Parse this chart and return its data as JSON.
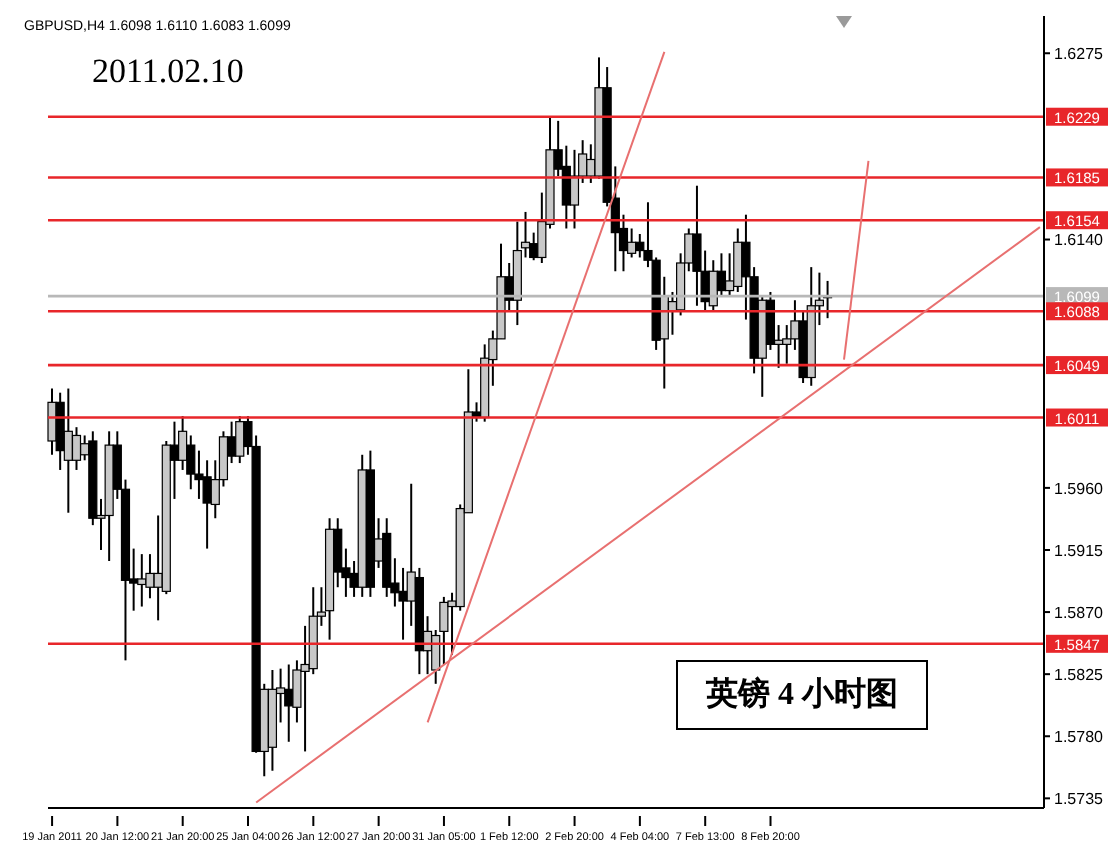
{
  "chart_data": {
    "type": "candlestick",
    "title": "2011.02.10",
    "subtitle": "GBPUSD,H4 1.6098 1.6110 1.6083 1.6099",
    "annotations": [
      "英镑 4 小时图"
    ],
    "categories": [
      "19 Jan 2011",
      null,
      null,
      null,
      null,
      null,
      null,
      null,
      "20 Jan 12:00",
      null,
      null,
      null,
      null,
      null,
      null,
      null,
      "21 Jan 20:00",
      null,
      null,
      null,
      null,
      null,
      null,
      null,
      "25 Jan 04:00",
      null,
      null,
      null,
      null,
      null,
      null,
      null,
      "26 Jan 12:00",
      null,
      null,
      null,
      null,
      null,
      null,
      null,
      "27 Jan 20:00",
      null,
      null,
      null,
      null,
      null,
      null,
      null,
      "31 Jan 05:00",
      null,
      null,
      null,
      null,
      null,
      null,
      null,
      "1 Feb 12:00",
      null,
      null,
      null,
      null,
      null,
      null,
      null,
      "2 Feb 20:00",
      null,
      null,
      null,
      null,
      null,
      null,
      null,
      "4 Feb 04:00",
      null,
      null,
      null,
      null,
      null,
      null,
      null,
      "7 Feb 13:00",
      null,
      null,
      null,
      null,
      null,
      null,
      null,
      "8 Feb 20:00",
      null,
      null,
      null,
      null,
      null,
      null,
      null,
      null,
      null,
      null,
      null,
      null,
      null,
      null,
      null,
      null,
      null,
      null,
      null,
      null,
      null,
      null,
      null,
      null,
      null,
      null,
      null,
      null,
      null,
      null,
      null,
      null,
      null
    ],
    "ohlc": [
      [
        1.5994,
        1.6032,
        1.5984,
        1.6022
      ],
      [
        1.6022,
        1.6029,
        1.5973,
        1.5987
      ],
      [
        1.598,
        1.6032,
        1.5942,
        1.6001
      ],
      [
        1.598,
        1.6004,
        1.5973,
        1.5998
      ],
      [
        1.5984,
        1.5998,
        1.598,
        1.5992
      ],
      [
        1.5994,
        1.6001,
        1.5933,
        1.5938
      ],
      [
        1.5938,
        1.5952,
        1.5915,
        1.594
      ],
      [
        1.594,
        1.6001,
        1.5907,
        1.5991
      ],
      [
        1.5991,
        1.6001,
        1.5952,
        1.5959
      ],
      [
        1.5959,
        1.5966,
        1.5835,
        1.5893
      ],
      [
        1.5894,
        1.5916,
        1.5871,
        1.5891
      ],
      [
        1.589,
        1.5912,
        1.5874,
        1.5894
      ],
      [
        1.5888,
        1.5912,
        1.588,
        1.5898
      ],
      [
        1.5888,
        1.594,
        1.5864,
        1.5898
      ],
      [
        1.5885,
        1.5994,
        1.5883,
        1.5991
      ],
      [
        1.5991,
        1.6008,
        1.5952,
        1.598
      ],
      [
        1.598,
        1.6012,
        1.5973,
        1.6001
      ],
      [
        1.5991,
        1.5998,
        1.5959,
        1.597
      ],
      [
        1.597,
        1.5987,
        1.5952,
        1.5966
      ],
      [
        1.5968,
        1.598,
        1.5916,
        1.5949
      ],
      [
        1.5948,
        1.598,
        1.5938,
        1.5966
      ],
      [
        1.5966,
        1.6001,
        1.5961,
        1.5997
      ],
      [
        1.5997,
        1.6008,
        1.5978,
        1.5983
      ],
      [
        1.5983,
        1.6012,
        1.5978,
        1.6008
      ],
      [
        1.6008,
        1.6012,
        1.5984,
        1.599
      ],
      [
        1.599,
        1.5998,
        1.5768,
        1.5769
      ],
      [
        1.5769,
        1.5818,
        1.5751,
        1.5814
      ],
      [
        1.5772,
        1.5828,
        1.5755,
        1.5814
      ],
      [
        1.5811,
        1.5829,
        1.579,
        1.5815
      ],
      [
        1.5814,
        1.5832,
        1.5776,
        1.5802
      ],
      [
        1.5801,
        1.5835,
        1.579,
        1.5828
      ],
      [
        1.5827,
        1.586,
        1.5769,
        1.5832
      ],
      [
        1.5829,
        1.5888,
        1.5825,
        1.5867
      ],
      [
        1.5867,
        1.5888,
        1.586,
        1.587
      ],
      [
        1.5871,
        1.5938,
        1.585,
        1.593
      ],
      [
        1.593,
        1.5938,
        1.5888,
        1.5899
      ],
      [
        1.5902,
        1.5916,
        1.5881,
        1.5895
      ],
      [
        1.5898,
        1.5907,
        1.5881,
        1.5888
      ],
      [
        1.5888,
        1.5984,
        1.5881,
        1.5973
      ],
      [
        1.5973,
        1.5987,
        1.5881,
        1.5888
      ],
      [
        1.5907,
        1.5938,
        1.5902,
        1.5923
      ],
      [
        1.5927,
        1.5938,
        1.5881,
        1.5888
      ],
      [
        1.5891,
        1.5909,
        1.5874,
        1.5884
      ],
      [
        1.5885,
        1.5902,
        1.585,
        1.5878
      ],
      [
        1.5878,
        1.5963,
        1.586,
        1.5899
      ],
      [
        1.5895,
        1.5902,
        1.5825,
        1.5842
      ],
      [
        1.5842,
        1.5867,
        1.5825,
        1.5856
      ],
      [
        1.5828,
        1.5857,
        1.5818,
        1.5853
      ],
      [
        1.5856,
        1.5881,
        1.5832,
        1.5877
      ],
      [
        1.5874,
        1.5884,
        1.5839,
        1.5878
      ],
      [
        1.5874,
        1.5948,
        1.5871,
        1.5945
      ],
      [
        1.5942,
        1.6046,
        1.5942,
        1.6015
      ],
      [
        1.6015,
        1.6022,
        1.6008,
        1.6011
      ],
      [
        1.6011,
        1.6064,
        1.6008,
        1.6054
      ],
      [
        1.6053,
        1.6074,
        1.6034,
        1.6068
      ],
      [
        1.6068,
        1.6137,
        1.6068,
        1.6113
      ],
      [
        1.6113,
        1.6123,
        1.6088,
        1.6096
      ],
      [
        1.6096,
        1.6153,
        1.6078,
        1.6132
      ],
      [
        1.6134,
        1.616,
        1.6127,
        1.6138
      ],
      [
        1.6137,
        1.6145,
        1.6125,
        1.6127
      ],
      [
        1.6127,
        1.6174,
        1.6123,
        1.6153
      ],
      [
        1.6151,
        1.6229,
        1.6148,
        1.6205
      ],
      [
        1.6205,
        1.6226,
        1.6186,
        1.6191
      ],
      [
        1.6193,
        1.6208,
        1.6148,
        1.6165
      ],
      [
        1.6165,
        1.6205,
        1.6148,
        1.6186
      ],
      [
        1.6186,
        1.6212,
        1.6181,
        1.6202
      ],
      [
        1.6186,
        1.6209,
        1.6181,
        1.6198
      ],
      [
        1.6186,
        1.6272,
        1.6184,
        1.625
      ],
      [
        1.625,
        1.6265,
        1.6164,
        1.6167
      ],
      [
        1.617,
        1.6193,
        1.6117,
        1.6145
      ],
      [
        1.6148,
        1.6158,
        1.6117,
        1.6132
      ],
      [
        1.613,
        1.6148,
        1.6127,
        1.6138
      ],
      [
        1.6138,
        1.6144,
        1.6127,
        1.6132
      ],
      [
        1.6132,
        1.6167,
        1.612,
        1.6125
      ],
      [
        1.6125,
        1.6127,
        1.606,
        1.6067
      ],
      [
        1.6068,
        1.6113,
        1.6032,
        1.6099
      ],
      [
        1.6088,
        1.6102,
        1.6071,
        1.6095
      ],
      [
        1.6089,
        1.613,
        1.6085,
        1.6123
      ],
      [
        1.6123,
        1.6148,
        1.6117,
        1.6144
      ],
      [
        1.6144,
        1.6179,
        1.6092,
        1.6117
      ],
      [
        1.6117,
        1.6132,
        1.6088,
        1.6095
      ],
      [
        1.6092,
        1.6125,
        1.6088,
        1.6117
      ],
      [
        1.6117,
        1.613,
        1.6099,
        1.6103
      ],
      [
        1.6103,
        1.613,
        1.6099,
        1.611
      ],
      [
        1.6106,
        1.6148,
        1.6102,
        1.6138
      ],
      [
        1.6138,
        1.6158,
        1.6082,
        1.6113
      ],
      [
        1.6113,
        1.612,
        1.6043,
        1.6054
      ],
      [
        1.6054,
        1.6099,
        1.6026,
        1.6096
      ],
      [
        1.6096,
        1.6102,
        1.606,
        1.6064
      ],
      [
        1.6064,
        1.6078,
        1.6047,
        1.6067
      ],
      [
        1.6064,
        1.6078,
        1.605,
        1.6068
      ],
      [
        1.6068,
        1.6096,
        1.606,
        1.6081
      ],
      [
        1.6081,
        1.6088,
        1.6036,
        1.604
      ],
      [
        1.604,
        1.612,
        1.6034,
        1.6092
      ],
      [
        1.6092,
        1.6116,
        1.6078,
        1.6096
      ],
      [
        1.6098,
        1.611,
        1.6083,
        1.6099
      ],
      null,
      null,
      null,
      null,
      null,
      null,
      null,
      null,
      null,
      null,
      null,
      null,
      null,
      null,
      null,
      null,
      null,
      null,
      null,
      null,
      null,
      null,
      null,
      null,
      null,
      null
    ],
    "series": [
      {
        "type": "line",
        "color": "#e87070",
        "values": [
          null,
          null,
          null,
          null,
          null,
          null,
          null,
          null,
          null,
          null,
          null,
          null,
          null,
          null,
          null,
          null,
          null,
          null,
          null,
          null,
          null,
          null,
          null,
          null,
          null,
          1.5732,
          null,
          null,
          null,
          null,
          null,
          null,
          null,
          null,
          null,
          null,
          null,
          null,
          null,
          null,
          null,
          null,
          null,
          null,
          null,
          null,
          null,
          null,
          null,
          null,
          null,
          null,
          null,
          null,
          null,
          null,
          null,
          null,
          null,
          null,
          null,
          null,
          null,
          null,
          null,
          null,
          null,
          null,
          null,
          null,
          null,
          null,
          null,
          null,
          null,
          null,
          null,
          null,
          null,
          null,
          null,
          null,
          null,
          null,
          null,
          null,
          null,
          null,
          null,
          null,
          null,
          null,
          null,
          null,
          null,
          null,
          null,
          null,
          null,
          null,
          null,
          null,
          null,
          null,
          null,
          null,
          null,
          null,
          null,
          null,
          null,
          null,
          null,
          null,
          null,
          null,
          null,
          null,
          null,
          null,
          null,
          1.6149
        ]
      },
      {
        "type": "line",
        "color": "#e87070",
        "values": [
          null,
          null,
          null,
          null,
          null,
          null,
          null,
          null,
          null,
          null,
          null,
          null,
          null,
          null,
          null,
          null,
          null,
          null,
          null,
          null,
          null,
          null,
          null,
          null,
          null,
          null,
          null,
          null,
          null,
          null,
          null,
          null,
          null,
          null,
          null,
          null,
          null,
          null,
          null,
          null,
          null,
          null,
          null,
          null,
          null,
          null,
          1.579,
          null,
          null,
          null,
          null,
          null,
          null,
          null,
          null,
          null,
          null,
          null,
          null,
          null,
          null,
          null,
          null,
          null,
          null,
          null,
          null,
          null,
          null,
          null,
          null,
          null,
          null,
          null,
          null,
          1.6276,
          null,
          null,
          null,
          null,
          null,
          null,
          null,
          null,
          null,
          null,
          null,
          null,
          null,
          null,
          null,
          null,
          null,
          null,
          null,
          null,
          null,
          null,
          null,
          null,
          null,
          null,
          null,
          null,
          null,
          null,
          null,
          null,
          null,
          null,
          null,
          null,
          null,
          null,
          null,
          null,
          null,
          null,
          null,
          null,
          null,
          null
        ]
      },
      {
        "type": "line",
        "color": "#e87070",
        "values": [
          null,
          null,
          null,
          null,
          null,
          null,
          null,
          null,
          null,
          null,
          null,
          null,
          null,
          null,
          null,
          null,
          null,
          null,
          null,
          null,
          null,
          null,
          null,
          null,
          null,
          null,
          null,
          null,
          null,
          null,
          null,
          null,
          null,
          null,
          null,
          null,
          null,
          null,
          null,
          null,
          null,
          null,
          null,
          null,
          null,
          null,
          null,
          null,
          null,
          null,
          null,
          null,
          null,
          null,
          null,
          null,
          null,
          null,
          null,
          null,
          null,
          null,
          null,
          null,
          null,
          null,
          null,
          null,
          null,
          null,
          null,
          null,
          null,
          null,
          null,
          null,
          null,
          null,
          null,
          null,
          null,
          null,
          null,
          null,
          null,
          null,
          null,
          null,
          null,
          null,
          null,
          null,
          null,
          null,
          null,
          null,
          null,
          1.6053,
          null,
          null,
          1.6197,
          null,
          null,
          null,
          null,
          null,
          null,
          null,
          null,
          null,
          null,
          null,
          null,
          null,
          null,
          null,
          null,
          null,
          null,
          null,
          null,
          null
        ]
      }
    ],
    "ylim": [
      1.5728,
      1.6302
    ],
    "yticks": [
      1.6275,
      {
        "value": 1.614,
        "label": "1.6140"
      },
      {
        "value": 1.596,
        "label": "1.5960"
      },
      1.5915,
      {
        "value": 1.587,
        "label": "1.5870"
      },
      1.5825,
      {
        "value": 1.578,
        "label": "1.5780"
      },
      1.5735
    ],
    "ref_lines": [
      {
        "axis": "y",
        "value": 1.6229,
        "label": "1.6229",
        "color": "#e8262a"
      },
      {
        "axis": "y",
        "value": 1.6185,
        "label": "1.6185",
        "color": "#e8262a"
      },
      {
        "axis": "y",
        "value": 1.6154,
        "label": "1.6154",
        "color": "#e8262a"
      },
      {
        "axis": "y",
        "value": 1.6099,
        "label": "1.6099",
        "color": "#b8b8b8"
      },
      {
        "axis": "y",
        "value": 1.6088,
        "label": "1.6088",
        "color": "#e8262a"
      },
      {
        "axis": "y",
        "value": 1.6049,
        "label": "1.6049",
        "color": "#e8262a"
      },
      {
        "axis": "y",
        "value": 1.6011,
        "label": "1.6011",
        "color": "#e8262a"
      },
      {
        "axis": "y",
        "value": 1.5847,
        "label": "1.5847",
        "color": "#e8262a"
      }
    ]
  }
}
